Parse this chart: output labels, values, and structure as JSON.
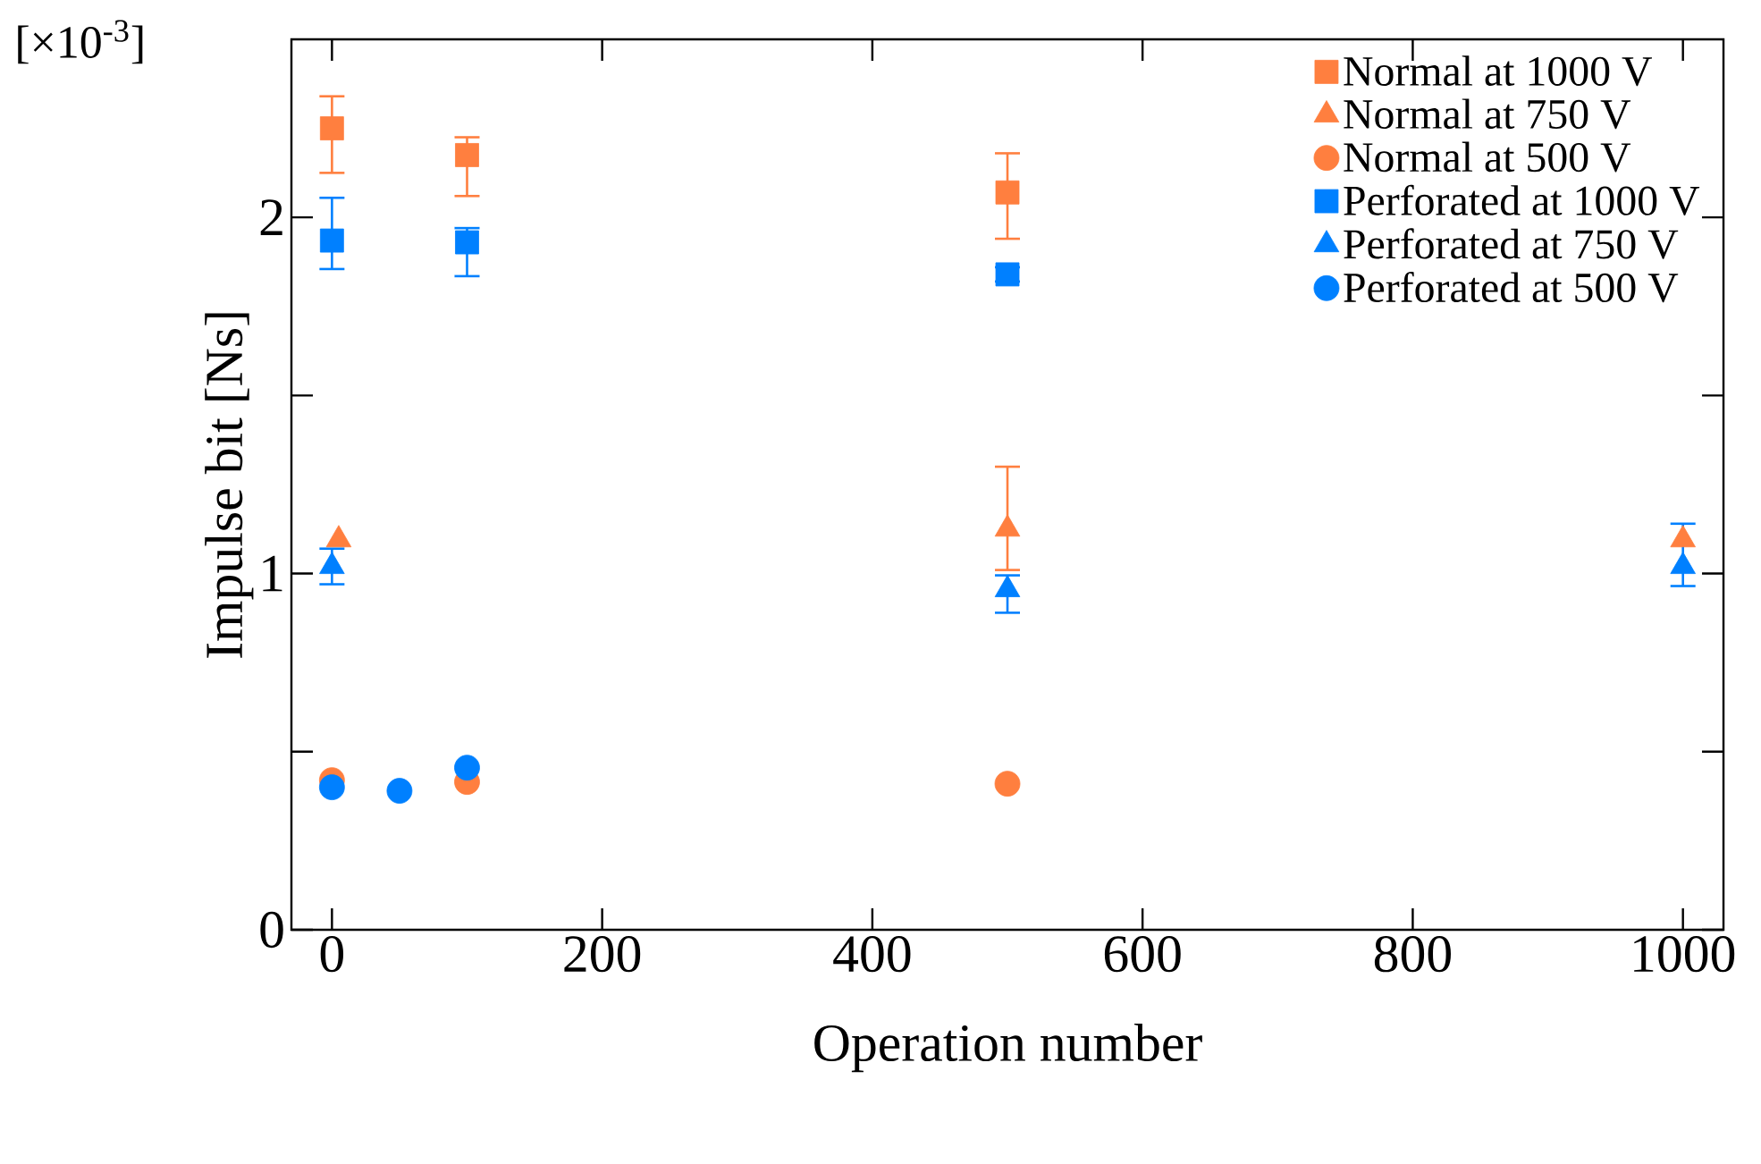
{
  "chart_data": {
    "type": "scatter",
    "xlabel": "Operation number",
    "ylabel": "Impulse bit [Ns]",
    "annotations": [
      "[×10$^{-3}$]"
    ],
    "xlim": [
      -30,
      1030
    ],
    "xticks": [
      0,
      200,
      400,
      600,
      800,
      1000
    ],
    "ylim": [
      0,
      2.5
    ],
    "yticks": [
      0,
      {
        "value": 0.5,
        "label": null
      },
      1,
      {
        "value": 1.5,
        "label": null
      },
      2
    ],
    "legend": "top right",
    "grid": false,
    "series": [
      {
        "name": "Normal at 1000 V",
        "color": "#ff7f3f",
        "marker": "square",
        "x": [
          0,
          100,
          500
        ],
        "values": [
          2.25,
          2.175,
          2.07
        ],
        "errors": [
          [
            2.125,
            2.34
          ],
          [
            2.06,
            2.225
          ],
          [
            1.94,
            2.18
          ]
        ]
      },
      {
        "name": "Normal at 750  V",
        "color": "#ff7f3f",
        "marker": "triangle",
        "x": [
          5,
          500,
          1000
        ],
        "values": [
          1.095,
          1.125,
          1.095
        ],
        "errors": [
          null,
          [
            1.01,
            1.3
          ],
          null
        ]
      },
      {
        "name": "Normal at 500  V",
        "color": "#ff7f3f",
        "marker": "circle",
        "x": [
          0,
          100,
          500
        ],
        "values": [
          0.42,
          0.415,
          0.41
        ]
      },
      {
        "name": "Perforated at 1000 V",
        "color": "#0080ff",
        "marker": "square",
        "x": [
          0,
          100,
          500
        ],
        "values": [
          1.935,
          1.93,
          1.84
        ],
        "errors": [
          [
            1.855,
            2.055
          ],
          [
            1.835,
            1.97
          ],
          [
            1.82,
            1.86
          ]
        ]
      },
      {
        "name": "Perforated at 750  V",
        "color": "#0080ff",
        "marker": "triangle",
        "x": [
          0,
          500,
          1000
        ],
        "values": [
          1.02,
          0.955,
          1.02
        ],
        "errors": [
          [
            0.97,
            1.07
          ],
          [
            0.89,
            0.995
          ],
          [
            0.965,
            1.14
          ]
        ]
      },
      {
        "name": "Perforated at 500  V",
        "color": "#0080ff",
        "marker": "circle",
        "x": [
          0,
          50,
          100
        ],
        "values": [
          0.4,
          0.39,
          0.455
        ]
      }
    ]
  }
}
